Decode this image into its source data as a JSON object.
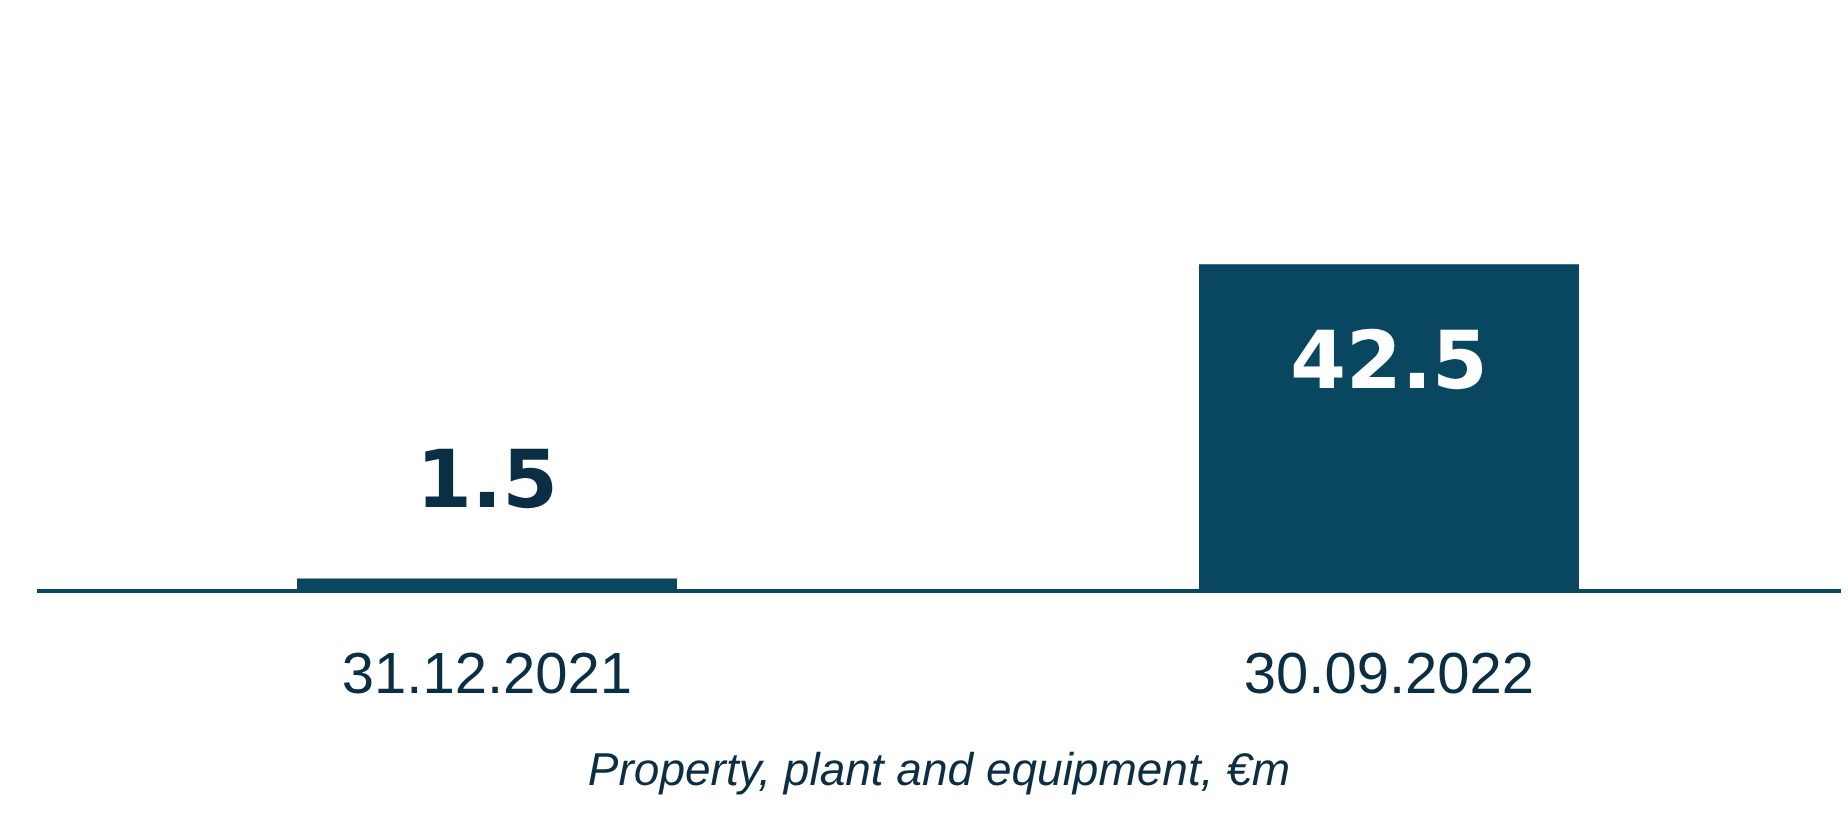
{
  "chart_data": {
    "type": "bar",
    "xlabel": "Property, plant and equipment, €m",
    "categories": [
      "31.12.2021",
      "30.09.2022"
    ],
    "values": [
      1.5,
      42.5
    ],
    "color": "#08475f",
    "ylim": [
      0,
      77
    ],
    "data_labels": true,
    "tick_labels": "x",
    "grid": false
  }
}
